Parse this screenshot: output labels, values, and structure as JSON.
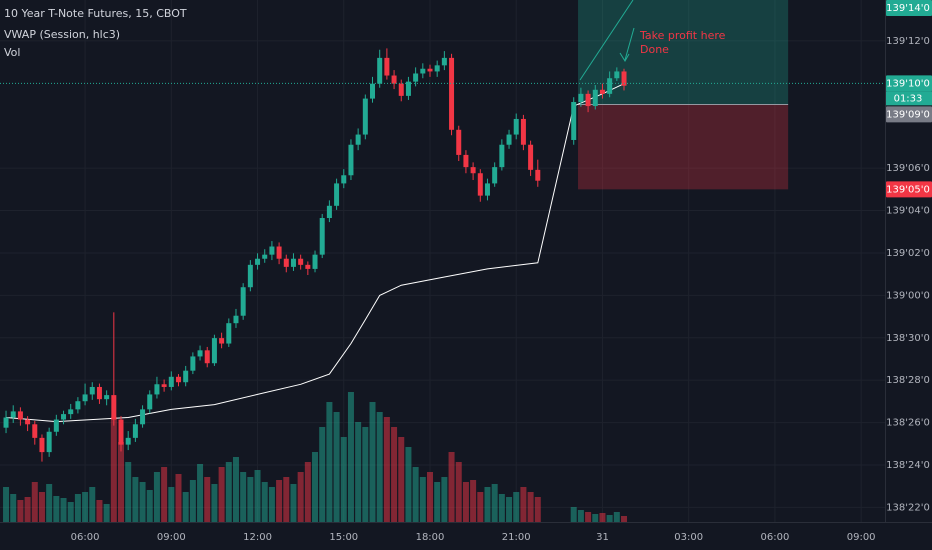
{
  "chart_data": {
    "type": "candlestick",
    "title": "10 Year T-Note Futures, 15, CBOT",
    "up_color": "#22ab94",
    "down_color": "#f23645",
    "x": [
      3.25,
      3.5,
      3.75,
      4,
      4.25,
      4.5,
      4.75,
      5,
      5.25,
      5.5,
      5.75,
      6,
      6.25,
      6.5,
      6.75,
      7,
      7.25,
      7.5,
      7.75,
      8,
      8.25,
      8.5,
      8.75,
      9,
      9.25,
      9.5,
      9.75,
      10,
      10.25,
      10.5,
      10.75,
      11,
      11.25,
      11.5,
      11.75,
      12,
      12.25,
      12.5,
      12.75,
      13,
      13.25,
      13.5,
      13.75,
      14,
      14.25,
      14.5,
      14.75,
      15,
      15.25,
      15.5,
      15.75,
      16,
      16.25,
      16.5,
      16.75,
      17,
      17.25,
      17.5,
      17.75,
      18,
      18.25,
      18.5,
      18.75,
      19,
      19.25,
      19.5,
      19.75,
      20,
      20.25,
      20.5,
      20.75,
      21,
      21.25,
      21.5,
      21.75,
      23,
      23.25,
      23.5,
      23.75,
      24,
      24.25,
      24.5,
      24.75
    ],
    "open": [
      138.805,
      138.82,
      138.829,
      138.817,
      138.81,
      138.79,
      138.769,
      138.799,
      138.817,
      138.825,
      138.832,
      138.844,
      138.854,
      138.865,
      138.847,
      138.853,
      138.817,
      138.78,
      138.79,
      138.81,
      138.832,
      138.854,
      138.869,
      138.865,
      138.88,
      138.872,
      138.889,
      138.91,
      138.919,
      138.9,
      138.937,
      138.929,
      138.959,
      138.97,
      139.012,
      139.045,
      139.054,
      139.06,
      139.072,
      139.054,
      139.042,
      139.054,
      139.045,
      139.039,
      139.06,
      139.114,
      139.132,
      139.165,
      139.177,
      139.222,
      139.237,
      139.29,
      139.312,
      139.35,
      139.324,
      139.312,
      139.294,
      139.315,
      139.327,
      139.334,
      139.33,
      139.339,
      139.35,
      139.244,
      139.207,
      139.189,
      139.18,
      139.147,
      139.165,
      139.189,
      139.222,
      139.237,
      139.26,
      139.222,
      139.185,
      139.229,
      139.285,
      139.297,
      139.279,
      139.303,
      139.297,
      139.32,
      139.33
    ],
    "high": [
      138.83,
      138.838,
      138.835,
      138.822,
      138.815,
      138.795,
      138.805,
      138.824,
      138.83,
      138.84,
      138.85,
      138.87,
      138.872,
      138.87,
      138.86,
      138.975,
      138.822,
      138.8,
      138.818,
      138.838,
      138.86,
      138.88,
      138.876,
      138.888,
      138.884,
      138.896,
      138.916,
      138.926,
      138.924,
      138.942,
      138.945,
      138.966,
      138.98,
      139.018,
      139.052,
      139.062,
      139.068,
      139.08,
      139.078,
      139.06,
      139.062,
      139.06,
      139.05,
      139.066,
      139.12,
      139.14,
      139.172,
      139.186,
      139.23,
      139.246,
      139.296,
      139.322,
      139.362,
      139.364,
      139.332,
      139.318,
      139.322,
      139.336,
      139.342,
      139.34,
      139.346,
      139.36,
      139.356,
      139.25,
      139.214,
      139.196,
      139.186,
      139.172,
      139.196,
      139.23,
      139.244,
      139.268,
      139.266,
      139.228,
      139.2,
      139.292,
      139.306,
      139.302,
      139.31,
      139.312,
      139.33,
      139.336,
      139.334
    ],
    "low": [
      138.797,
      138.812,
      138.808,
      138.8,
      138.78,
      138.755,
      138.762,
      138.793,
      138.81,
      138.818,
      138.826,
      138.838,
      138.846,
      138.84,
      138.838,
      138.808,
      138.77,
      138.772,
      138.784,
      138.805,
      138.826,
      138.848,
      138.858,
      138.86,
      138.866,
      138.866,
      138.884,
      138.904,
      138.894,
      138.896,
      138.922,
      138.924,
      138.952,
      138.964,
      139.006,
      139.038,
      139.048,
      139.052,
      139.046,
      139.034,
      139.036,
      139.038,
      139.03,
      139.034,
      139.055,
      139.108,
      139.126,
      139.158,
      139.17,
      139.214,
      139.23,
      139.284,
      139.306,
      139.318,
      139.304,
      139.286,
      139.288,
      139.308,
      139.32,
      139.322,
      139.322,
      139.332,
      139.236,
      139.198,
      139.18,
      139.17,
      139.138,
      139.14,
      139.16,
      139.184,
      139.216,
      139.23,
      139.214,
      139.176,
      139.16,
      139.222,
      139.278,
      139.27,
      139.274,
      139.29,
      139.292,
      139.316,
      139.302
    ],
    "close": [
      138.82,
      138.829,
      138.817,
      138.81,
      138.79,
      138.769,
      138.799,
      138.817,
      138.825,
      138.832,
      138.844,
      138.854,
      138.865,
      138.847,
      138.853,
      138.817,
      138.78,
      138.79,
      138.81,
      138.832,
      138.854,
      138.869,
      138.865,
      138.88,
      138.872,
      138.889,
      138.91,
      138.919,
      138.9,
      138.937,
      138.929,
      138.959,
      138.97,
      139.012,
      139.045,
      139.054,
      139.06,
      139.072,
      139.054,
      139.042,
      139.054,
      139.045,
      139.039,
      139.06,
      139.114,
      139.132,
      139.165,
      139.177,
      139.222,
      139.237,
      139.29,
      139.312,
      139.35,
      139.324,
      139.312,
      139.294,
      139.315,
      139.327,
      139.334,
      139.33,
      139.339,
      139.35,
      139.244,
      139.207,
      139.189,
      139.18,
      139.147,
      139.165,
      139.189,
      139.222,
      139.237,
      139.26,
      139.222,
      139.185,
      139.169,
      139.285,
      139.297,
      139.279,
      139.303,
      139.297,
      139.32,
      139.33,
      139.309
    ],
    "indicators": [
      {
        "name": "VWAP (Session, hlc3)",
        "color": "#ffffff",
        "x": [
          3.25,
          5,
          7.5,
          9,
          10.5,
          12,
          13.5,
          14.5,
          15.25,
          15.75,
          16.25,
          17,
          18.5,
          20,
          21.75,
          23,
          24,
          24.75
        ],
        "values": [
          138.82,
          138.814,
          138.82,
          138.832,
          138.839,
          138.854,
          138.869,
          138.884,
          138.929,
          138.964,
          139.0,
          139.015,
          139.027,
          139.039,
          139.048,
          139.279,
          139.297,
          139.312
        ]
      },
      {
        "name": "Vol",
        "values": [
          35,
          28,
          22,
          25,
          40,
          30,
          38,
          26,
          24,
          20,
          28,
          30,
          35,
          22,
          18,
          105,
          80,
          60,
          45,
          40,
          32,
          50,
          55,
          35,
          48,
          30,
          42,
          58,
          45,
          38,
          55,
          60,
          65,
          50,
          45,
          52,
          40,
          35,
          42,
          45,
          38,
          50,
          60,
          70,
          95,
          120,
          110,
          85,
          130,
          100,
          95,
          120,
          110,
          105,
          95,
          85,
          75,
          55,
          45,
          50,
          40,
          45,
          70,
          60,
          40,
          42,
          30,
          35,
          38,
          28,
          25,
          30,
          35,
          30,
          25,
          15,
          12,
          10,
          8,
          9,
          7,
          10,
          6
        ]
      }
    ],
    "xlim": [
      3.04,
      33.83
    ],
    "ylim": [
      138.666,
      139.4353
    ],
    "xticks": [
      {
        "value": 6,
        "label": "06:00"
      },
      {
        "value": 9,
        "label": "09:00"
      },
      {
        "value": 12,
        "label": "12:00"
      },
      {
        "value": 15,
        "label": "15:00"
      },
      {
        "value": 18,
        "label": "18:00"
      },
      {
        "value": 21,
        "label": "21:00"
      },
      {
        "value": 24,
        "label": "31"
      },
      {
        "value": 27,
        "label": "03:00"
      },
      {
        "value": 30,
        "label": "06:00"
      },
      {
        "value": 33,
        "label": "09:00"
      }
    ],
    "yticks": [
      {
        "value": 138.6875,
        "label": "138'22'0"
      },
      {
        "value": 138.75,
        "label": "138'24'0"
      },
      {
        "value": 138.8125,
        "label": "138'26'0"
      },
      {
        "value": 138.875,
        "label": "138'28'0"
      },
      {
        "value": 138.9375,
        "label": "138'30'0"
      },
      {
        "value": 139.0,
        "label": "139'00'0"
      },
      {
        "value": 139.0625,
        "label": "139'02'0"
      },
      {
        "value": 139.125,
        "label": "139'04'0"
      },
      {
        "value": 139.1875,
        "label": "139'06'0"
      },
      {
        "value": 139.375,
        "label": "139'12'0"
      }
    ],
    "grid": true,
    "last_price": {
      "value": 139.3125,
      "label": "139'10'0"
    },
    "countdown": "01:33",
    "position": {
      "x": [
        23.15,
        30.46
      ],
      "target": {
        "value": 139.4375,
        "label": "139'14'0"
      },
      "entry": {
        "value": 139.28125,
        "label": "139'09'0"
      },
      "stop": {
        "value": 139.15625,
        "label": "139'05'0"
      }
    },
    "annotation": [
      "Take profit here",
      "Done"
    ]
  }
}
